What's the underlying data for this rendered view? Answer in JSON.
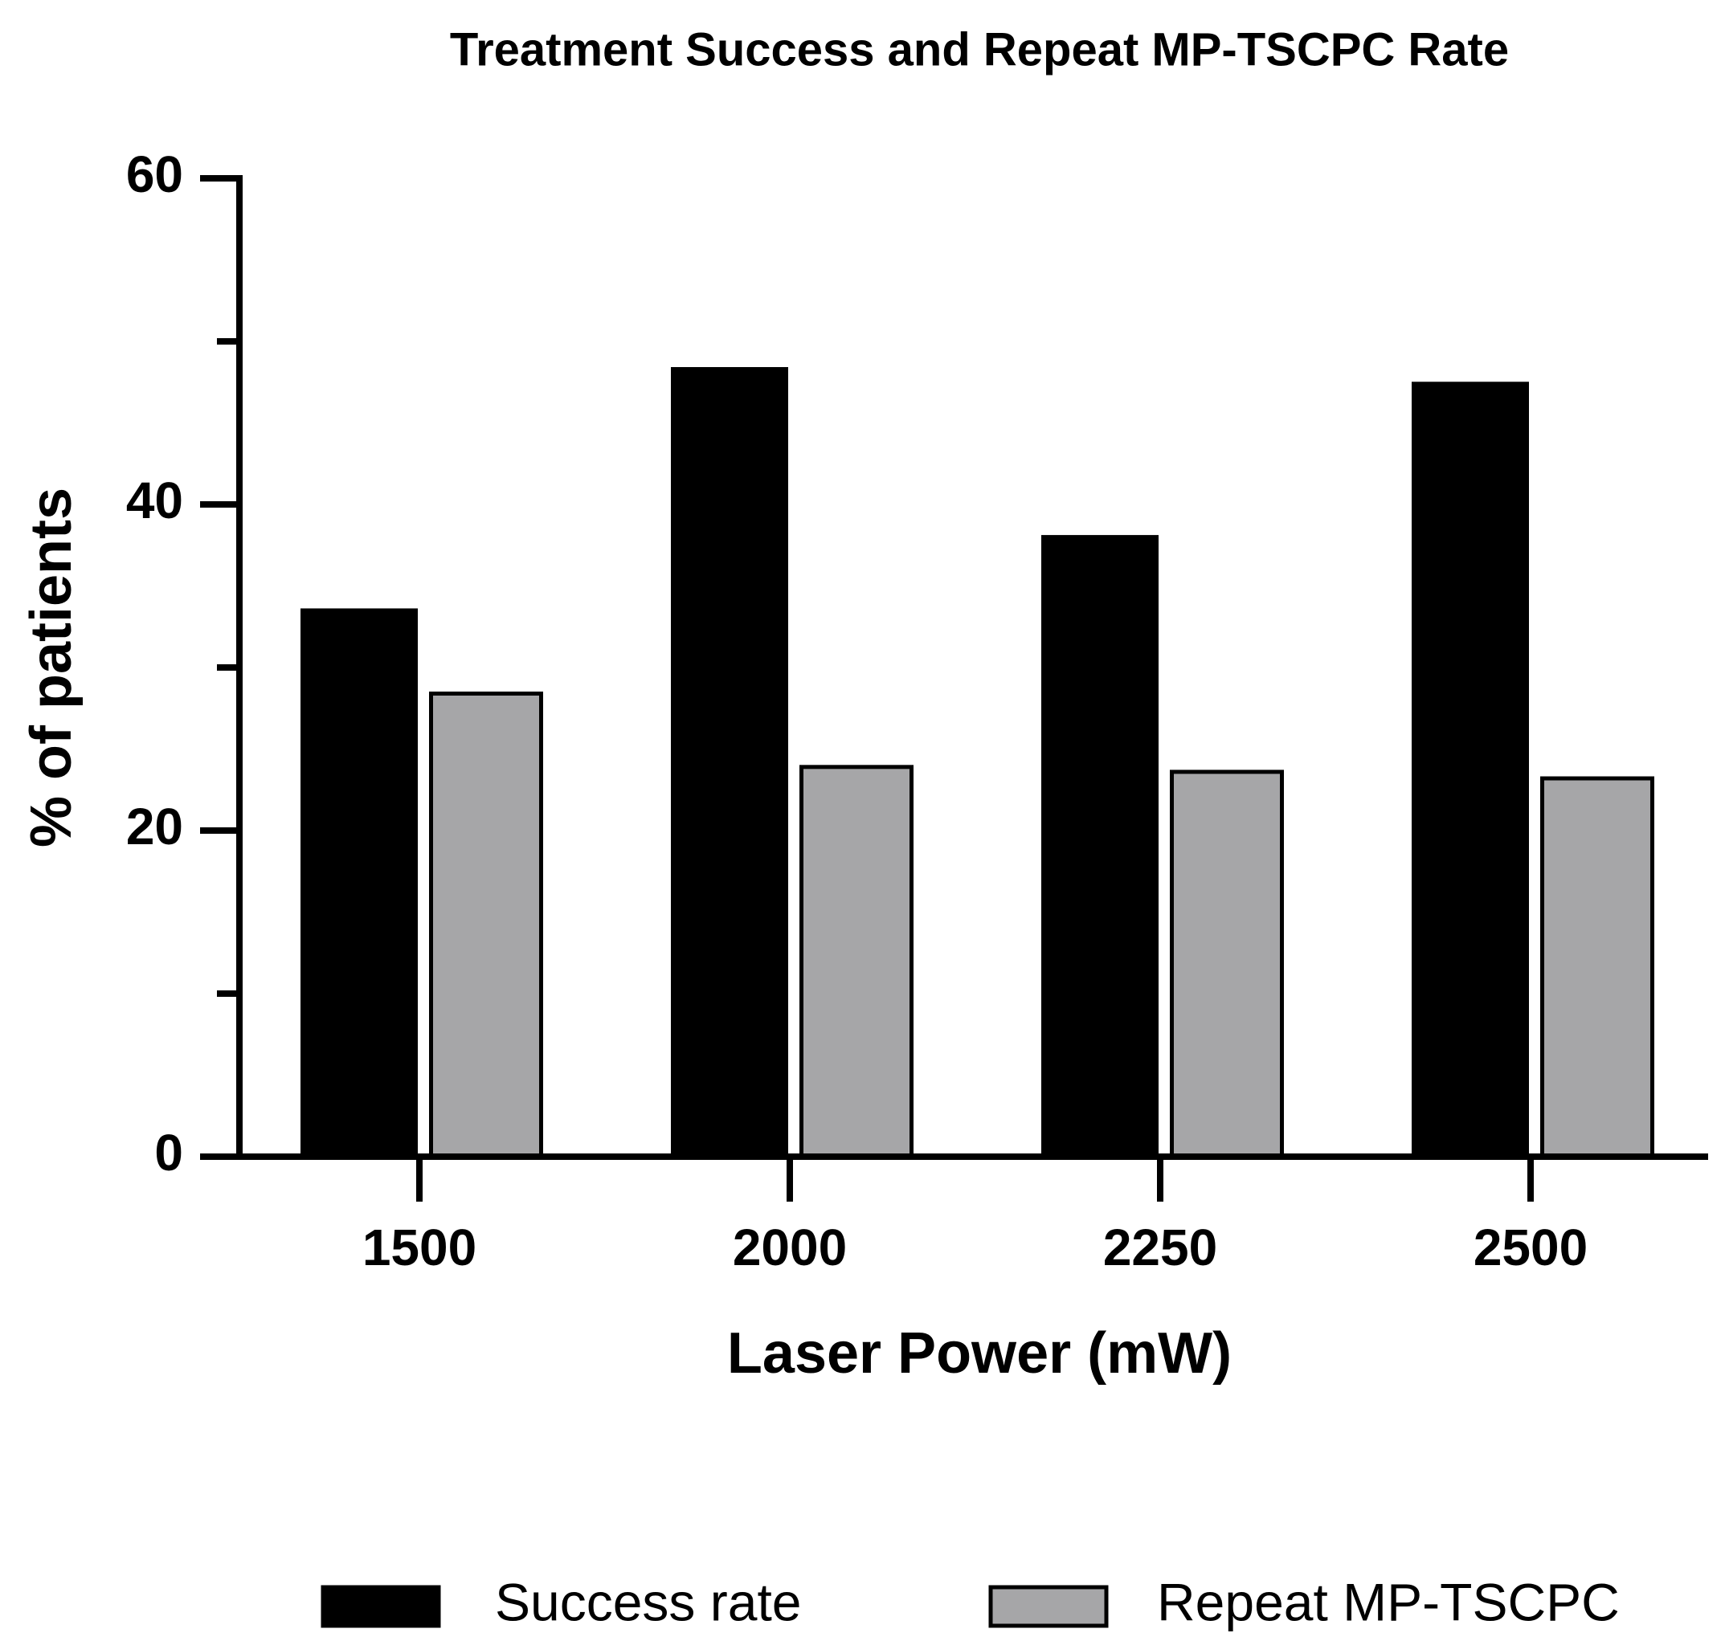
{
  "chart_data": {
    "type": "bar",
    "title": "Treatment Success and Repeat MP-TSCPC Rate",
    "x_label": "Laser Power (mW)",
    "y_label": "% of patients",
    "categories": [
      "1500",
      "2000",
      "2250",
      "2500"
    ],
    "series": [
      {
        "name": "Success rate",
        "color": "#000000",
        "values": [
          33.5,
          48.3,
          38.0,
          47.4
        ]
      },
      {
        "name": "Repeat MP-TSCPC",
        "color": "#a6a6a8",
        "values": [
          28.4,
          23.9,
          23.6,
          23.2
        ]
      }
    ],
    "ylim": [
      0,
      60
    ],
    "yticks": [
      0,
      20,
      40,
      60
    ],
    "yminorticks": [
      10,
      30,
      50
    ],
    "grid": false
  }
}
